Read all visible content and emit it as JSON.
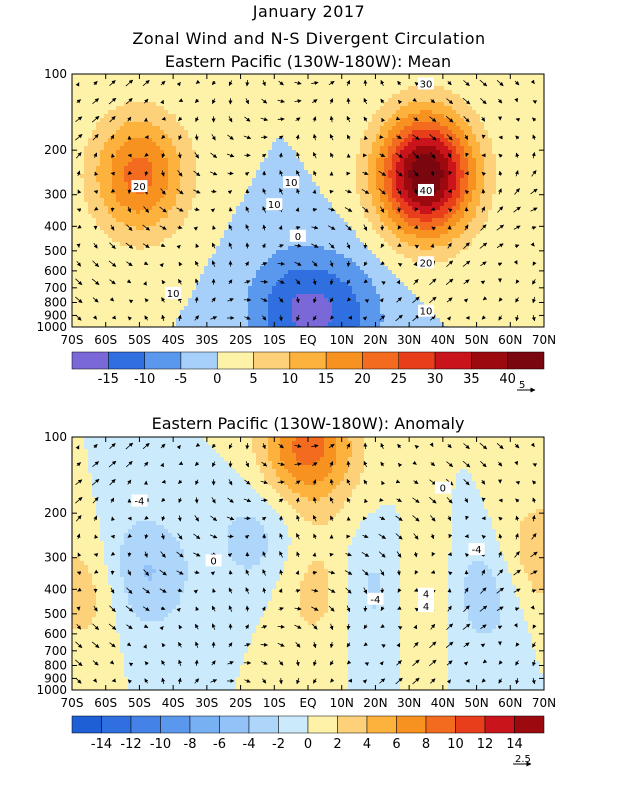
{
  "figure": {
    "title_line1": "January 2017",
    "title_line2": "Zonal Wind and N-S Divergent Circulation"
  },
  "chart_data": [
    {
      "type": "heatmap",
      "title": "Eastern Pacific (130W-180W): Mean",
      "x_ticks": [
        "70S",
        "60S",
        "50S",
        "40S",
        "30S",
        "20S",
        "10S",
        "EQ",
        "10N",
        "20N",
        "30N",
        "40N",
        "50N",
        "60N",
        "70N"
      ],
      "y_ticks": [
        100,
        200,
        300,
        400,
        500,
        600,
        700,
        800,
        900,
        1000
      ],
      "y_scale": "log-pressure",
      "colorbar": {
        "levels": [
          -20,
          -15,
          -10,
          -5,
          0,
          5,
          10,
          15,
          20,
          25,
          30,
          35,
          40,
          45
        ],
        "labels": [
          "-15",
          "-10",
          "-5",
          "0",
          "5",
          "10",
          "15",
          "20",
          "25",
          "30",
          "35",
          "40"
        ],
        "colors": [
          "#7b68d8",
          "#2f6fe0",
          "#5a98ee",
          "#a6d0fa",
          "#fdf2a8",
          "#fdd07a",
          "#fcb23c",
          "#f79220",
          "#f26b1f",
          "#e83e1c",
          "#c8141a",
          "#9c0a10",
          "#7a0610"
        ]
      },
      "contour_labels": [
        "30",
        "20",
        "40",
        "10",
        "20",
        "10",
        "10",
        "0",
        "10"
      ],
      "vector_reference": "5",
      "fields": {
        "positive_centers": [
          {
            "lat": -50,
            "p": 250,
            "value": 22
          },
          {
            "lat": 35,
            "p": 250,
            "value": 45
          }
        ],
        "negative_centers": [
          {
            "lat": -5,
            "p": 850,
            "value": -12
          },
          {
            "lat": 10,
            "p": 900,
            "value": -10
          }
        ]
      }
    },
    {
      "type": "heatmap",
      "title": "Eastern Pacific (130W-180W): Anomaly",
      "x_ticks": [
        "70S",
        "60S",
        "50S",
        "40S",
        "30S",
        "20S",
        "10S",
        "EQ",
        "10N",
        "20N",
        "30N",
        "40N",
        "50N",
        "60N",
        "70N"
      ],
      "y_ticks": [
        100,
        200,
        300,
        400,
        500,
        600,
        700,
        800,
        900,
        1000
      ],
      "y_scale": "log-pressure",
      "colorbar": {
        "levels": [
          -16,
          -14,
          -12,
          -10,
          -8,
          -6,
          -4,
          -2,
          0,
          2,
          4,
          6,
          8,
          10,
          12,
          14,
          16
        ],
        "labels": [
          "-14",
          "-12",
          "-10",
          "-8",
          "-6",
          "-4",
          "-2",
          "0",
          "2",
          "4",
          "6",
          "8",
          "10",
          "12",
          "14"
        ],
        "colors": [
          "#1e5fd6",
          "#2f6fe0",
          "#4482e8",
          "#5a98ee",
          "#78b0f4",
          "#92c2f8",
          "#aed6fb",
          "#cbebfd",
          "#fdf2a8",
          "#fdd07a",
          "#fcb23c",
          "#f79220",
          "#f26b1f",
          "#e83e1c",
          "#c8141a",
          "#9c0a10"
        ]
      },
      "contour_labels": [
        "-4",
        "4",
        "0",
        "-4",
        "4",
        "-4",
        "0"
      ],
      "vector_reference": "2.5",
      "fields": {
        "positive_centers": [
          {
            "lat": -65,
            "p": 400,
            "value": 4
          },
          {
            "lat": 0,
            "p": 110,
            "value": 9
          },
          {
            "lat": 5,
            "p": 400,
            "value": 4
          },
          {
            "lat": 35,
            "p": 400,
            "value": 5
          },
          {
            "lat": 68,
            "p": 300,
            "value": 4
          }
        ],
        "negative_centers": [
          {
            "lat": -50,
            "p": 350,
            "value": -5
          },
          {
            "lat": -15,
            "p": 250,
            "value": -3
          },
          {
            "lat": 20,
            "p": 400,
            "value": -5
          },
          {
            "lat": 50,
            "p": 400,
            "value": -5
          }
        ]
      }
    }
  ]
}
